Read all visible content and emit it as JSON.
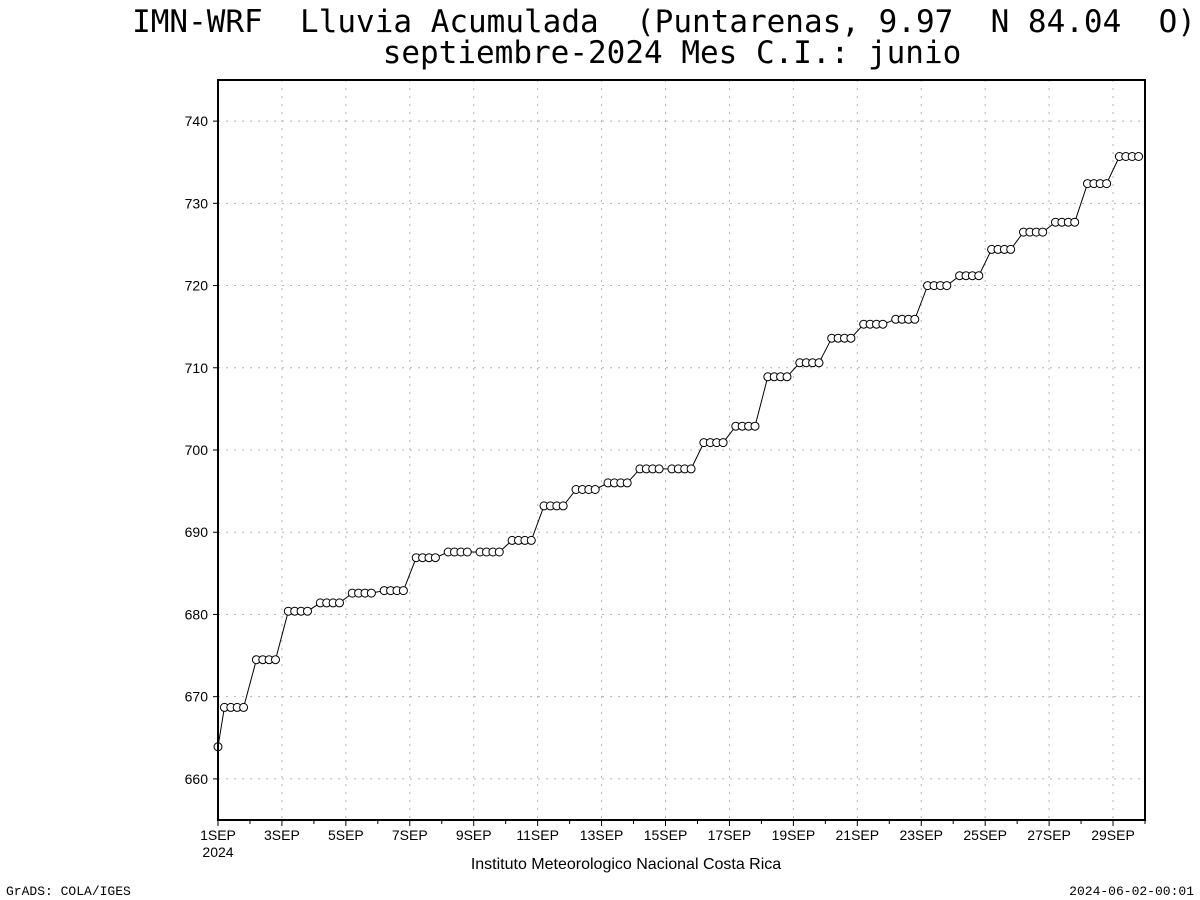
{
  "chart_data": {
    "type": "line",
    "title": "IMN-WRF  Lluvia Acumulada  (Puntarenas, 9.97  N 84.04  O)",
    "subtitle": "septiembre-2024 Mes C.I.: junio",
    "xlabel": "",
    "ylabel": "",
    "ylim": [
      655,
      745
    ],
    "yticks": [
      660,
      670,
      680,
      690,
      700,
      710,
      720,
      730,
      740
    ],
    "xlim_days": [
      1,
      30
    ],
    "x_ticks": [
      "1SEP",
      "3SEP",
      "5SEP",
      "7SEP",
      "9SEP",
      "11SEP",
      "13SEP",
      "15SEP",
      "17SEP",
      "19SEP",
      "21SEP",
      "23SEP",
      "25SEP",
      "27SEP",
      "29SEP"
    ],
    "x_start_year": "2024",
    "grid": true,
    "marker": "open-circle",
    "series_color": "#000000",
    "daily_levels": [
      [
        663.9,
        668.7,
        668.7,
        668.7,
        668.7
      ],
      [
        674.5,
        674.5,
        674.5,
        674.5
      ],
      [
        680.4,
        680.4,
        680.4,
        680.4
      ],
      [
        681.4,
        681.4,
        681.4,
        681.4
      ],
      [
        682.6,
        682.6,
        682.6,
        682.6
      ],
      [
        682.9,
        682.9,
        682.9,
        682.9
      ],
      [
        686.9,
        686.9,
        686.9,
        686.9
      ],
      [
        687.6,
        687.6,
        687.6,
        687.6
      ],
      [
        687.6,
        687.6,
        687.6,
        687.6
      ],
      [
        689.0,
        689.0,
        689.0,
        689.0
      ],
      [
        693.2,
        693.2,
        693.2,
        693.2
      ],
      [
        695.2,
        695.2,
        695.2,
        695.2
      ],
      [
        696.0,
        696.0,
        696.0,
        696.0
      ],
      [
        697.7,
        697.7,
        697.7,
        697.7
      ],
      [
        697.7,
        697.7,
        697.7,
        697.7
      ],
      [
        700.9,
        700.9,
        700.9,
        700.9
      ],
      [
        702.9,
        702.9,
        702.9,
        702.9
      ],
      [
        708.9,
        708.9,
        708.9,
        708.9
      ],
      [
        710.6,
        710.6,
        710.6,
        710.6
      ],
      [
        713.6,
        713.6,
        713.6,
        713.6
      ],
      [
        715.3,
        715.3,
        715.3,
        715.3
      ],
      [
        715.9,
        715.9,
        715.9,
        715.9
      ],
      [
        720.0,
        720.0,
        720.0,
        720.0
      ],
      [
        721.2,
        721.2,
        721.2,
        721.2
      ],
      [
        724.4,
        724.4,
        724.4,
        724.4
      ],
      [
        726.5,
        726.5,
        726.5,
        726.5
      ],
      [
        727.7,
        727.7,
        727.7,
        727.7
      ],
      [
        732.4,
        732.4,
        732.4,
        732.4
      ],
      [
        735.7,
        735.7,
        735.7,
        735.7
      ]
    ]
  },
  "footer": {
    "institution": "Instituto Meteorologico Nacional Costa Rica",
    "credit": "GrADS: COLA/IGES",
    "timestamp": "2024-06-02-00:01"
  }
}
